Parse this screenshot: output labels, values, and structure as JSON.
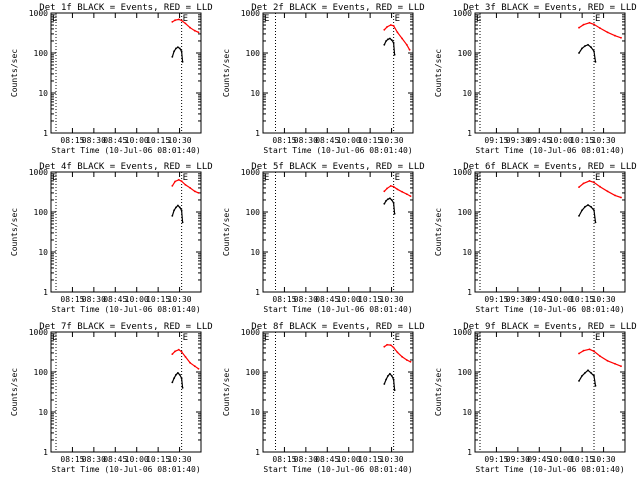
{
  "colors": {
    "events": "#000000",
    "lld": "#ff0000",
    "axis": "#000000"
  },
  "shared": {
    "ylabel": "Counts/sec",
    "xlabel": "Start Time (10-Jul-06 08:01:40)",
    "y_ticks": [
      "1",
      "10",
      "100",
      "1000"
    ],
    "marker_label": "E",
    "ylim": [
      1,
      1000
    ],
    "y_scale": "log"
  },
  "chart_data": [
    {
      "type": "line",
      "title": "Det 1f BLACK = Events, RED = LLD",
      "xlim": [
        "08:01:40",
        "10:41:40"
      ],
      "x_ticks": [
        "08:15",
        "08:30",
        "08:45",
        "10:00",
        "10:15",
        "10:30"
      ],
      "vlines": [
        "08:07",
        "10:21"
      ],
      "series": [
        {
          "name": "RED = LLD",
          "x": [
            "10:11",
            "10:14",
            "10:18",
            "10:21",
            "10:25",
            "10:30",
            "10:35",
            "10:39"
          ],
          "y": [
            600,
            660,
            690,
            650,
            550,
            430,
            360,
            330
          ]
        },
        {
          "name": "BLACK = Events",
          "x": [
            "10:11",
            "10:13",
            "10:15",
            "10:17",
            "10:19",
            "10:21",
            "10:22"
          ],
          "y": [
            80,
            110,
            130,
            140,
            130,
            110,
            60
          ]
        }
      ]
    },
    {
      "type": "line",
      "title": "Det 2f BLACK = Events, RED = LLD",
      "xlim": [
        "08:01:40",
        "10:41:40"
      ],
      "x_ticks": [
        "08:15",
        "08:30",
        "08:45",
        "10:00",
        "10:15",
        "10:30"
      ],
      "vlines": [
        "08:15",
        "10:21"
      ],
      "series": [
        {
          "name": "RED = LLD",
          "x": [
            "10:11",
            "10:14",
            "10:18",
            "10:21",
            "10:25",
            "10:30",
            "10:35",
            "10:38"
          ],
          "y": [
            380,
            450,
            500,
            480,
            330,
            230,
            160,
            120
          ]
        },
        {
          "name": "BLACK = Events",
          "x": [
            "10:11",
            "10:13",
            "10:15",
            "10:17",
            "10:19",
            "10:21",
            "10:22"
          ],
          "y": [
            160,
            200,
            220,
            230,
            210,
            180,
            90
          ]
        }
      ]
    },
    {
      "type": "line",
      "title": "Det 3f BLACK = Events, RED = LLD",
      "xlim": [
        "09:01:40",
        "10:41:40"
      ],
      "x_ticks": [
        "09:15",
        "09:30",
        "09:45",
        "10:00",
        "10:15",
        "10:30"
      ],
      "vlines": [
        "09:05",
        "10:21"
      ],
      "series": [
        {
          "name": "RED = LLD",
          "x": [
            "10:11",
            "10:14",
            "10:18",
            "10:21",
            "10:25",
            "10:30",
            "10:35",
            "10:39"
          ],
          "y": [
            430,
            510,
            570,
            520,
            420,
            330,
            270,
            240
          ]
        },
        {
          "name": "BLACK = Events",
          "x": [
            "10:11",
            "10:13",
            "10:15",
            "10:17",
            "10:19",
            "10:21",
            "10:22"
          ],
          "y": [
            100,
            130,
            150,
            160,
            140,
            110,
            60
          ]
        }
      ]
    },
    {
      "type": "line",
      "title": "Det 4f BLACK = Events, RED = LLD",
      "xlim": [
        "08:01:40",
        "10:41:40"
      ],
      "x_ticks": [
        "08:15",
        "08:30",
        "08:45",
        "10:00",
        "10:15",
        "10:30"
      ],
      "vlines": [
        "08:07",
        "10:21"
      ],
      "series": [
        {
          "name": "RED = LLD",
          "x": [
            "10:11",
            "10:14",
            "10:18",
            "10:21",
            "10:25",
            "10:30",
            "10:35",
            "10:39"
          ],
          "y": [
            450,
            580,
            640,
            590,
            480,
            400,
            330,
            300
          ]
        },
        {
          "name": "BLACK = Events",
          "x": [
            "10:11",
            "10:13",
            "10:15",
            "10:17",
            "10:19",
            "10:21",
            "10:22"
          ],
          "y": [
            80,
            110,
            130,
            145,
            130,
            110,
            55
          ]
        }
      ]
    },
    {
      "type": "line",
      "title": "Det 5f BLACK = Events, RED = LLD",
      "xlim": [
        "08:01:40",
        "10:41:40"
      ],
      "x_ticks": [
        "08:15",
        "08:30",
        "08:45",
        "10:00",
        "10:15",
        "10:30"
      ],
      "vlines": [
        "08:15",
        "10:21"
      ],
      "series": [
        {
          "name": "RED = LLD",
          "x": [
            "10:11",
            "10:14",
            "10:18",
            "10:21",
            "10:25",
            "10:30",
            "10:35",
            "10:39"
          ],
          "y": [
            330,
            390,
            450,
            430,
            370,
            320,
            280,
            250
          ]
        },
        {
          "name": "BLACK = Events",
          "x": [
            "10:11",
            "10:13",
            "10:15",
            "10:17",
            "10:19",
            "10:21",
            "10:22"
          ],
          "y": [
            160,
            190,
            210,
            220,
            200,
            170,
            90
          ]
        }
      ]
    },
    {
      "type": "line",
      "title": "Det 6f BLACK = Events, RED = LLD",
      "xlim": [
        "09:01:40",
        "10:41:40"
      ],
      "x_ticks": [
        "09:15",
        "09:30",
        "09:45",
        "10:00",
        "10:15",
        "10:30"
      ],
      "vlines": [
        "09:05",
        "10:21"
      ],
      "series": [
        {
          "name": "RED = LLD",
          "x": [
            "10:11",
            "10:14",
            "10:18",
            "10:21",
            "10:25",
            "10:30",
            "10:35",
            "10:39"
          ],
          "y": [
            420,
            520,
            600,
            550,
            430,
            330,
            260,
            230
          ]
        },
        {
          "name": "BLACK = Events",
          "x": [
            "10:11",
            "10:13",
            "10:15",
            "10:17",
            "10:19",
            "10:21",
            "10:22"
          ],
          "y": [
            80,
            110,
            135,
            150,
            135,
            110,
            55
          ]
        }
      ]
    },
    {
      "type": "line",
      "title": "Det 7f BLACK = Events, RED = LLD",
      "xlim": [
        "08:01:40",
        "10:41:40"
      ],
      "x_ticks": [
        "08:15",
        "08:30",
        "08:45",
        "10:00",
        "10:15",
        "10:30"
      ],
      "vlines": [
        "08:07",
        "10:21"
      ],
      "series": [
        {
          "name": "RED = LLD",
          "x": [
            "10:11",
            "10:14",
            "10:18",
            "10:21",
            "10:25",
            "10:30",
            "10:35",
            "10:39"
          ],
          "y": [
            280,
            330,
            360,
            320,
            240,
            170,
            140,
            120
          ]
        },
        {
          "name": "BLACK = Events",
          "x": [
            "10:11",
            "10:13",
            "10:15",
            "10:17",
            "10:19",
            "10:21",
            "10:22"
          ],
          "y": [
            55,
            70,
            85,
            95,
            85,
            70,
            40
          ]
        }
      ]
    },
    {
      "type": "line",
      "title": "Det 8f BLACK = Events, RED = LLD",
      "xlim": [
        "08:01:40",
        "10:41:40"
      ],
      "x_ticks": [
        "08:15",
        "08:30",
        "08:45",
        "10:00",
        "10:15",
        "10:30"
      ],
      "vlines": [
        "08:15",
        "10:21"
      ],
      "series": [
        {
          "name": "RED = LLD",
          "x": [
            "10:11",
            "10:14",
            "10:18",
            "10:21",
            "10:25",
            "10:30",
            "10:35",
            "10:39"
          ],
          "y": [
            430,
            480,
            470,
            410,
            310,
            240,
            200,
            180
          ]
        },
        {
          "name": "BLACK = Events",
          "x": [
            "10:11",
            "10:13",
            "10:15",
            "10:17",
            "10:19",
            "10:21",
            "10:22"
          ],
          "y": [
            50,
            65,
            80,
            90,
            80,
            65,
            35
          ]
        }
      ]
    },
    {
      "type": "line",
      "title": "Det 9f BLACK = Events, RED = LLD",
      "xlim": [
        "09:01:40",
        "10:41:40"
      ],
      "x_ticks": [
        "09:15",
        "09:30",
        "09:45",
        "10:00",
        "10:15",
        "10:30"
      ],
      "vlines": [
        "09:05",
        "10:21"
      ],
      "series": [
        {
          "name": "RED = LLD",
          "x": [
            "10:11",
            "10:14",
            "10:18",
            "10:21",
            "10:25",
            "10:30",
            "10:35",
            "10:39"
          ],
          "y": [
            290,
            340,
            370,
            330,
            250,
            190,
            160,
            140
          ]
        },
        {
          "name": "BLACK = Events",
          "x": [
            "10:11",
            "10:13",
            "10:15",
            "10:17",
            "10:19",
            "10:21",
            "10:22"
          ],
          "y": [
            60,
            80,
            95,
            110,
            95,
            80,
            45
          ]
        }
      ]
    }
  ]
}
